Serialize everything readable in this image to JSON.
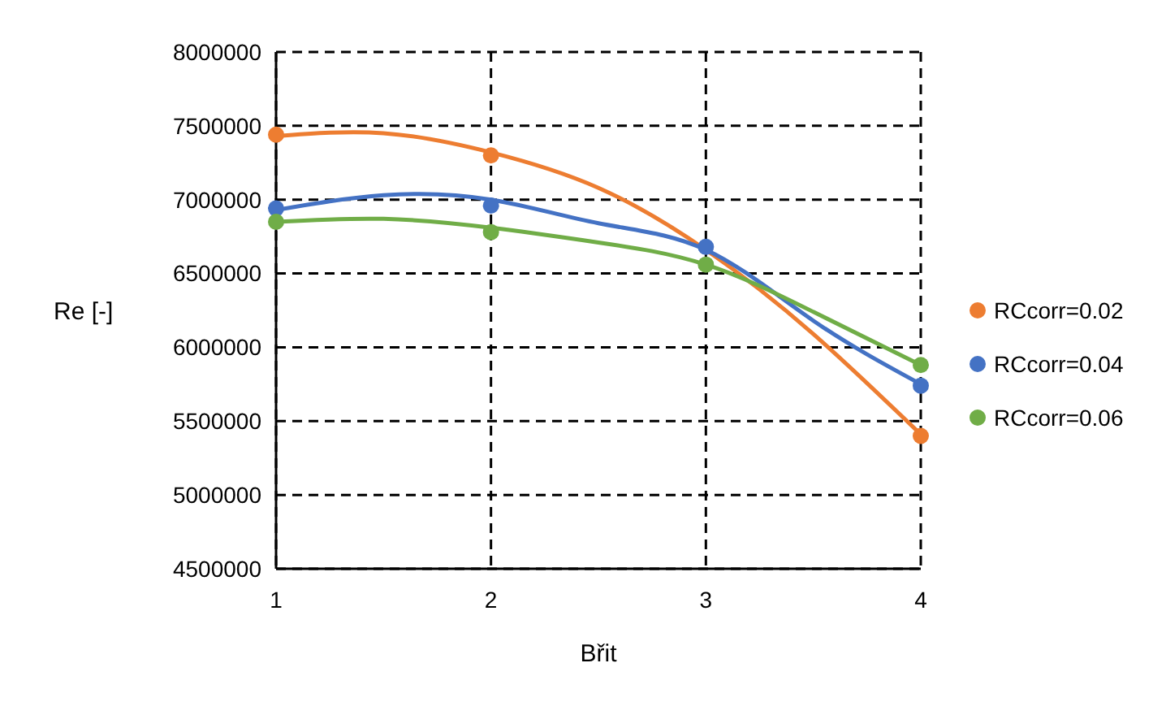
{
  "chart_data": {
    "type": "scatter",
    "xlabel": "Břit",
    "ylabel": "Re [-]",
    "xlim": [
      1,
      4
    ],
    "xticks": [
      1,
      2,
      3,
      4
    ],
    "ylim": [
      4500000,
      8000000
    ],
    "yticks": [
      4500000,
      5000000,
      5500000,
      6000000,
      6500000,
      7000000,
      7500000,
      8000000
    ],
    "grid": true,
    "legend": "right",
    "marker": "circle",
    "series": [
      {
        "name": "RCcorr=0.02",
        "color": "#ed7d31",
        "x": [
          1,
          2,
          3,
          4
        ],
        "values": [
          7440000,
          7300000,
          null,
          5400000
        ]
      },
      {
        "name": "RCcorr=0.04",
        "color": "#4472c4",
        "x": [
          1,
          2,
          3,
          4
        ],
        "values": [
          6940000,
          6960000,
          6680000,
          5740000
        ]
      },
      {
        "name": "RCcorr=0.06",
        "color": "#70ad47",
        "x": [
          1,
          2,
          3,
          4
        ],
        "values": [
          6850000,
          6780000,
          6560000,
          5880000
        ]
      },
      {
        "type": "line",
        "marker": "none",
        "color": "#ed7d31",
        "x": [
          1,
          1.5,
          2,
          2.5,
          3,
          3.5,
          4
        ],
        "values": [
          7430000,
          7450000,
          7320000,
          7080000,
          6660000,
          6090000,
          5410000
        ]
      },
      {
        "type": "line",
        "marker": "none",
        "color": "#4472c4",
        "x": [
          1,
          1.5,
          2,
          2.5,
          3,
          3.5,
          4
        ],
        "values": [
          6930000,
          7030000,
          7000000,
          6840000,
          6660000,
          6180000,
          5750000
        ]
      },
      {
        "type": "line",
        "marker": "none",
        "color": "#70ad47",
        "x": [
          1,
          1.5,
          2,
          2.5,
          3,
          3.5,
          4
        ],
        "values": [
          6850000,
          6870000,
          6810000,
          6710000,
          6560000,
          6240000,
          5880000
        ]
      }
    ]
  }
}
